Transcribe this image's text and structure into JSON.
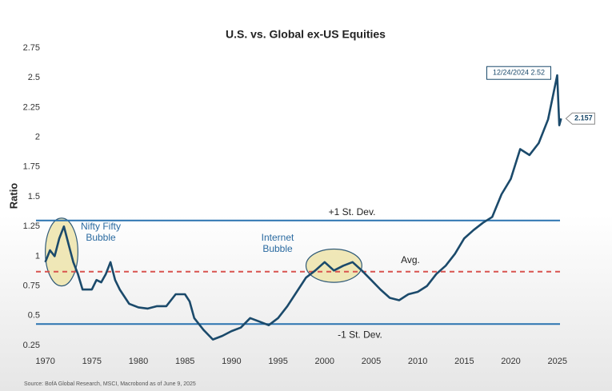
{
  "chart_data": {
    "type": "line",
    "title": "U.S. vs. Global ex-US Equities",
    "y_label": "Ratio",
    "source": "Source: BofA Global Research, MSCI, Macrobond as of June 9, 2025",
    "xlim": [
      1969,
      2027
    ],
    "xticks": [
      1970,
      1975,
      1980,
      1985,
      1990,
      1995,
      2000,
      2005,
      2010,
      2015,
      2020,
      2025
    ],
    "ylim": [
      0.25,
      2.75
    ],
    "yticks": [
      0.25,
      0.5,
      0.75,
      1.0,
      1.25,
      1.5,
      1.75,
      2.0,
      2.25,
      2.5,
      2.75
    ],
    "x": [
      1970,
      1970.5,
      1971,
      1971.5,
      1972,
      1972.5,
      1973,
      1973.5,
      1974,
      1975,
      1975.5,
      1976,
      1976.5,
      1977,
      1977.5,
      1978,
      1979,
      1980,
      1981,
      1982,
      1983,
      1984,
      1985,
      1985.5,
      1986,
      1987,
      1988,
      1989,
      1990,
      1991,
      1992,
      1993,
      1994,
      1995,
      1996,
      1997,
      1998,
      1999,
      2000,
      2001,
      2002,
      2003,
      2004,
      2005,
      2006,
      2007,
      2008,
      2009,
      2010,
      2011,
      2012,
      2013,
      2014,
      2015,
      2016,
      2017,
      2018,
      2019,
      2020,
      2021,
      2022,
      2023,
      2024,
      2024.98,
      2025.2,
      2025.4
    ],
    "series": [
      {
        "name": "U.S. vs. Global ex-US",
        "color": "#1b4a6b",
        "values": [
          0.95,
          1.05,
          1.0,
          1.15,
          1.25,
          1.1,
          0.95,
          0.85,
          0.72,
          0.72,
          0.8,
          0.78,
          0.85,
          0.95,
          0.8,
          0.72,
          0.6,
          0.57,
          0.56,
          0.58,
          0.58,
          0.68,
          0.68,
          0.62,
          0.48,
          0.38,
          0.3,
          0.33,
          0.37,
          0.4,
          0.48,
          0.45,
          0.42,
          0.48,
          0.58,
          0.7,
          0.82,
          0.88,
          0.95,
          0.88,
          0.92,
          0.95,
          0.88,
          0.8,
          0.72,
          0.65,
          0.63,
          0.68,
          0.7,
          0.75,
          0.85,
          0.92,
          1.02,
          1.15,
          1.22,
          1.28,
          1.33,
          1.52,
          1.65,
          1.9,
          1.85,
          1.95,
          2.15,
          2.52,
          2.1,
          2.157
        ]
      }
    ],
    "reference_lines": [
      {
        "label": "+1 St. Dev.",
        "value": 1.3,
        "color": "#2a73b0",
        "style": "solid"
      },
      {
        "label": "Avg.",
        "value": 0.87,
        "color": "#d9534f",
        "style": "dashed"
      },
      {
        "label": "-1 St. Dev.",
        "value": 0.43,
        "color": "#2a73b0",
        "style": "solid"
      }
    ],
    "highlights": [
      {
        "lines": [
          "Nifty Fifty",
          "Bubble"
        ],
        "x_range": [
          1970,
          1973.5
        ],
        "y_range": [
          0.75,
          1.32
        ]
      },
      {
        "lines": [
          "Internet",
          "Bubble"
        ],
        "x_range": [
          1998,
          2004
        ],
        "y_range": [
          0.78,
          1.06
        ]
      }
    ],
    "annotations": [
      {
        "text": "12/24/2024 2.52",
        "x": 2024.98,
        "value": 2.52
      },
      {
        "text": "2.157",
        "x": 2025.4,
        "value": 2.157
      }
    ]
  }
}
